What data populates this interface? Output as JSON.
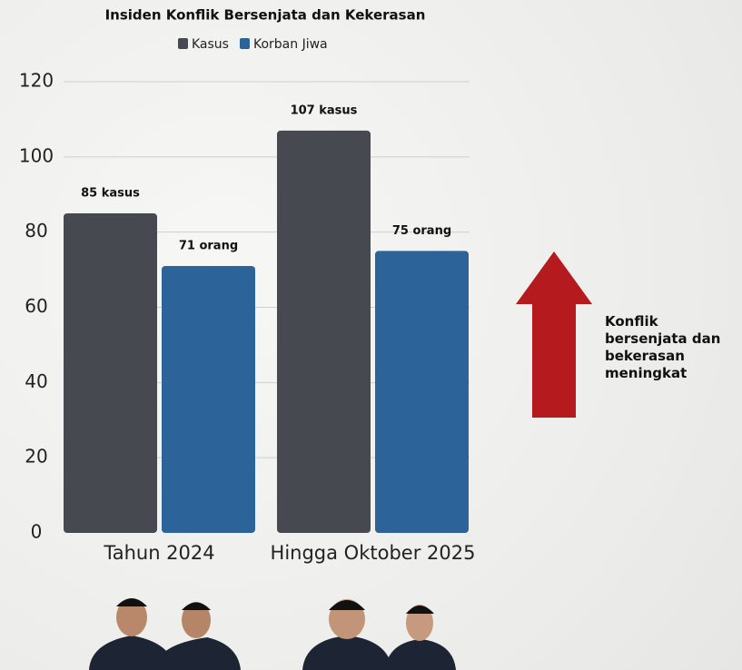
{
  "chart_data": {
    "type": "bar",
    "title": "Insiden Konflik Bersenjata dan Kekerasan",
    "categories": [
      "Tahun 2024",
      "Hingga Oktober 2025"
    ],
    "series": [
      {
        "name": "Kasus",
        "color": "#464a50",
        "values": [
          85,
          107
        ],
        "value_labels": [
          "85 kasus",
          "107 kasus"
        ]
      },
      {
        "name": "Korban Jiwa",
        "color": "#2c6399",
        "values": [
          71,
          75
        ],
        "value_labels": [
          "71 orang",
          "75 orang"
        ]
      }
    ],
    "ylim": [
      0,
      120
    ],
    "yticks": [
      0,
      20,
      40,
      60,
      80,
      100,
      120
    ],
    "grid": true,
    "annotation": "Konflik bersenjata dan bekerasan meningkat"
  }
}
